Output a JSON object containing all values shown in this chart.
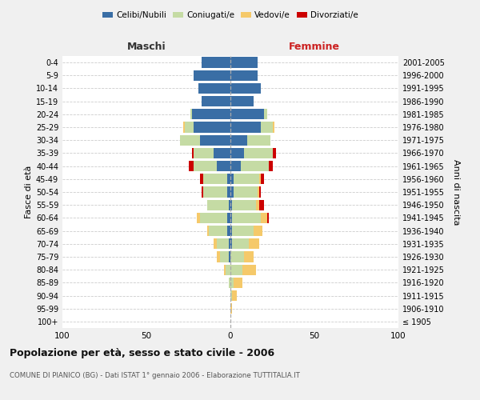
{
  "age_groups": [
    "100+",
    "95-99",
    "90-94",
    "85-89",
    "80-84",
    "75-79",
    "70-74",
    "65-69",
    "60-64",
    "55-59",
    "50-54",
    "45-49",
    "40-44",
    "35-39",
    "30-34",
    "25-29",
    "20-24",
    "15-19",
    "10-14",
    "5-9",
    "0-4"
  ],
  "birth_years": [
    "≤ 1905",
    "1906-1910",
    "1911-1915",
    "1916-1920",
    "1921-1925",
    "1926-1930",
    "1931-1935",
    "1936-1940",
    "1941-1945",
    "1946-1950",
    "1951-1955",
    "1956-1960",
    "1961-1965",
    "1966-1970",
    "1971-1975",
    "1976-1980",
    "1981-1985",
    "1986-1990",
    "1991-1995",
    "1996-2000",
    "2001-2005"
  ],
  "male_celibi": [
    0,
    0,
    0,
    0,
    0,
    1,
    1,
    2,
    2,
    1,
    2,
    2,
    8,
    10,
    18,
    22,
    23,
    17,
    19,
    22,
    17
  ],
  "male_coniugati": [
    0,
    0,
    0,
    1,
    3,
    5,
    7,
    11,
    16,
    13,
    14,
    14,
    14,
    12,
    12,
    5,
    1,
    0,
    0,
    0,
    0
  ],
  "male_vedovi": [
    0,
    0,
    0,
    0,
    1,
    2,
    2,
    1,
    2,
    0,
    0,
    0,
    0,
    0,
    0,
    1,
    0,
    0,
    0,
    0,
    0
  ],
  "male_divorziati": [
    0,
    0,
    0,
    0,
    0,
    0,
    0,
    0,
    0,
    0,
    1,
    2,
    3,
    1,
    0,
    0,
    0,
    0,
    0,
    0,
    0
  ],
  "female_celibi": [
    0,
    0,
    0,
    0,
    0,
    0,
    1,
    1,
    1,
    1,
    2,
    2,
    6,
    8,
    10,
    18,
    20,
    14,
    18,
    16,
    16
  ],
  "female_coniugati": [
    0,
    0,
    1,
    2,
    7,
    8,
    10,
    13,
    17,
    14,
    14,
    15,
    17,
    17,
    14,
    7,
    2,
    0,
    0,
    0,
    0
  ],
  "female_vedovi": [
    0,
    1,
    3,
    5,
    8,
    6,
    6,
    5,
    4,
    2,
    1,
    1,
    0,
    0,
    0,
    1,
    0,
    0,
    0,
    0,
    0
  ],
  "female_divorziati": [
    0,
    0,
    0,
    0,
    0,
    0,
    0,
    0,
    1,
    3,
    1,
    2,
    2,
    2,
    0,
    0,
    0,
    0,
    0,
    0,
    0
  ],
  "color_celibi": "#3a6ea5",
  "color_coniugati": "#c5dba4",
  "color_vedovi": "#f5c96a",
  "color_divorziati": "#cc0000",
  "title": "Popolazione per età, sesso e stato civile - 2006",
  "subtitle": "COMUNE DI PIANICO (BG) - Dati ISTAT 1° gennaio 2006 - Elaborazione TUTTITALIA.IT",
  "label_maschi": "Maschi",
  "label_femmine": "Femmine",
  "ylabel_left": "Fasce di età",
  "ylabel_right": "Anni di nascita",
  "xlim": 100,
  "bg_color": "#f0f0f0",
  "plot_bg_color": "#ffffff",
  "grid_color": "#cccccc",
  "legend_labels": [
    "Celibi/Nubili",
    "Coniugati/e",
    "Vedovi/e",
    "Divorziati/e"
  ]
}
